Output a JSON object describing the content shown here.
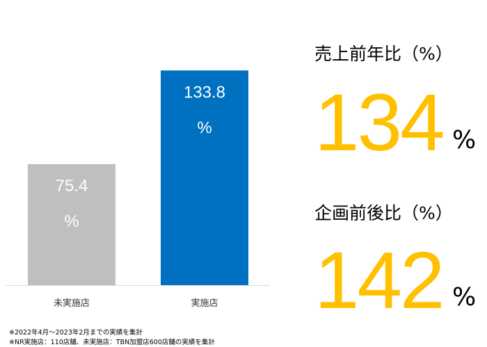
{
  "chart_data": {
    "type": "bar",
    "categories": [
      "未実施店",
      "実施店"
    ],
    "values": [
      75.4,
      133.8
    ],
    "value_labels": [
      "75.4",
      "133.8"
    ],
    "value_unit": "%",
    "colors": [
      "#bfbfbf",
      "#0070c0"
    ],
    "ylim": [
      0,
      140
    ],
    "grid": false,
    "legend": "none"
  },
  "stats": [
    {
      "label": "売上前年比（%）",
      "value": "134",
      "unit": "%"
    },
    {
      "label": "企画前後比（%）",
      "value": "142",
      "unit": "%"
    }
  ],
  "colors": {
    "stat_value": "#ffc000",
    "axis": "#d9d9d9"
  },
  "footnotes": [
    "※2022年4月～2023年2月までの実績を集計",
    "※NR実施店：110店舗、未実施店：TBN加盟店600店舗の実績を集計"
  ]
}
